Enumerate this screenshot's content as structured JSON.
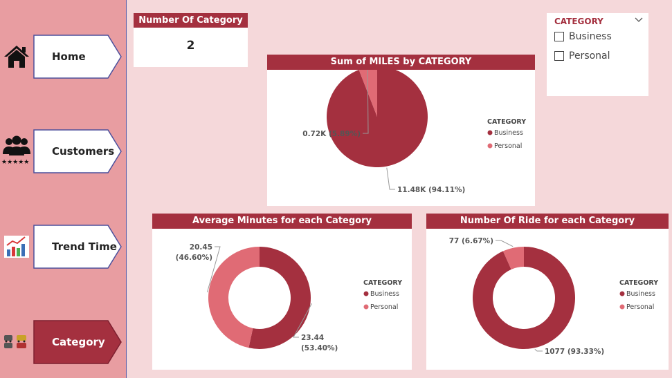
{
  "nav": [
    {
      "label": "Home",
      "icon": "home-icon",
      "active": false
    },
    {
      "label": "Customers",
      "icon": "customers-icon",
      "active": false
    },
    {
      "label": "Trend Time",
      "icon": "trend-chart-icon",
      "active": false
    },
    {
      "label": "Category",
      "icon": "cars-icon",
      "active": true
    }
  ],
  "kpi": {
    "title": "Number Of Category",
    "value": "2"
  },
  "slicer": {
    "title": "CATEGORY",
    "options": [
      "Business",
      "Personal"
    ]
  },
  "colors": {
    "business": "#a4303f",
    "personal": "#e06b75",
    "header": "#a4303f",
    "sidebar": "#e89da1",
    "background": "#f5d8da"
  },
  "chart_data": [
    {
      "type": "pie",
      "title": "Sum of MILES by CATEGORY",
      "legend_title": "CATEGORY",
      "legend_position": "right",
      "categories": [
        "Business",
        "Personal"
      ],
      "values": [
        11.48,
        0.72
      ],
      "labels": [
        "11.48K (94.11%)",
        "0.72K (5.89%)"
      ]
    },
    {
      "type": "pie",
      "donut": true,
      "title": "Average Minutes for each Category",
      "legend_title": "CATEGORY",
      "legend_position": "right",
      "categories": [
        "Business",
        "Personal"
      ],
      "values": [
        23.44,
        20.45
      ],
      "labels": [
        "23.44\n(53.40%)",
        "20.45\n(46.60%)"
      ]
    },
    {
      "type": "pie",
      "donut": true,
      "title": "Number Of Ride for each Category",
      "legend_title": "CATEGORY",
      "legend_position": "right",
      "categories": [
        "Business",
        "Personal"
      ],
      "values": [
        1077,
        77
      ],
      "labels": [
        "1077 (93.33%)",
        "77 (6.67%)"
      ]
    }
  ]
}
